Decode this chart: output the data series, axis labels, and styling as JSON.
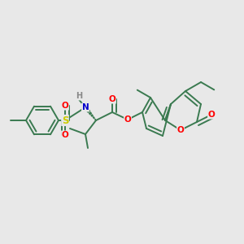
{
  "bg_color": "#e8e8e8",
  "bond_color": "#3a7a50",
  "bond_width": 1.4,
  "atom_colors": {
    "O": "#ff0000",
    "N": "#0000cc",
    "S": "#cccc00",
    "H": "#888888",
    "C": "#3a7a50"
  }
}
